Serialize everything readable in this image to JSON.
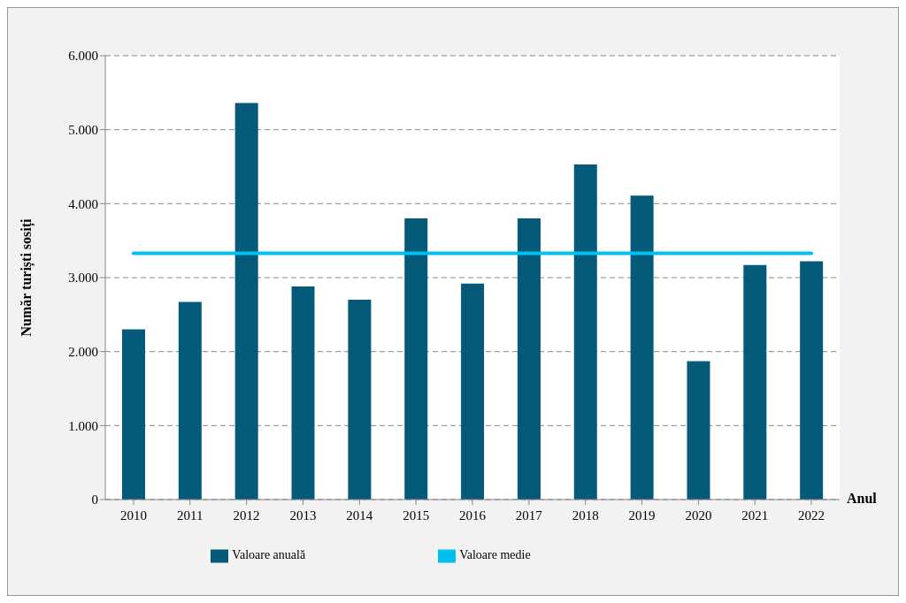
{
  "chart_data": {
    "type": "bar",
    "ylabel": "Număr turiști sosiți",
    "xlabel": "Anul",
    "categories": [
      "2010",
      "2011",
      "2012",
      "2013",
      "2014",
      "2015",
      "2016",
      "2017",
      "2018",
      "2019",
      "2020",
      "2021",
      "2022"
    ],
    "series": [
      {
        "name": "Valoare anuală",
        "color": "#055a7a",
        "values": [
          2300,
          2670,
          5360,
          2880,
          2700,
          3800,
          2920,
          3800,
          4530,
          4110,
          1870,
          3170,
          3220
        ]
      },
      {
        "name": "Valoare medie",
        "type": "line",
        "color": "#00c0f0",
        "values": [
          3330,
          3330,
          3330,
          3330,
          3330,
          3330,
          3330,
          3330,
          3330,
          3330,
          3330,
          3330,
          3330
        ]
      }
    ],
    "ylim": [
      0,
      6000
    ],
    "yticks": [
      0,
      {
        "value": 1000,
        "label": "1.000"
      },
      {
        "value": 2000,
        "label": "2.000"
      },
      {
        "value": 3000,
        "label": "3.000"
      },
      {
        "value": 4000,
        "label": "4.000"
      },
      {
        "value": 5000,
        "label": "5.000"
      },
      {
        "value": 6000,
        "label": "6.000"
      }
    ],
    "grid": "y",
    "legend": "bottom",
    "marker": "none",
    "line_style": "solid"
  }
}
